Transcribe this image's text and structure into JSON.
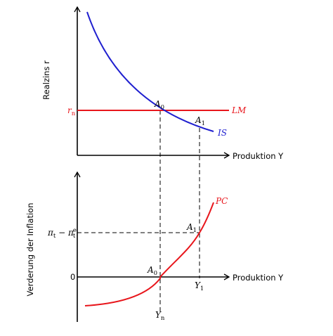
{
  "colors": {
    "axis": "#000000",
    "is_curve": "#1f1fcf",
    "lm_curve": "#e8161c",
    "pc_curve": "#e8161c",
    "guides": "#000000"
  },
  "top_panel": {
    "y_axis_label": "Realzins r",
    "x_axis_label": "Produktion Y",
    "rate_tick_label": "r",
    "rate_tick_sub": "n",
    "lm_label": "LM",
    "is_label": "IS",
    "point_a0": {
      "base": "A",
      "sub": "0"
    },
    "point_a1": {
      "base": "A",
      "sub": "1"
    }
  },
  "bottom_panel": {
    "y_axis_label": "Verderung der Inflation",
    "x_axis_label": "Produktion Y",
    "zero_tick_label": "0",
    "gap_tick_label": "π_t − π_t^e",
    "pc_label": "PC",
    "point_a0": {
      "base": "A",
      "sub": "0"
    },
    "point_a1": {
      "base": "A",
      "sub": "1"
    },
    "x_tick_yn": {
      "base": "Y",
      "sub": "n"
    },
    "x_tick_y1": {
      "base": "Y",
      "sub": "1"
    }
  }
}
